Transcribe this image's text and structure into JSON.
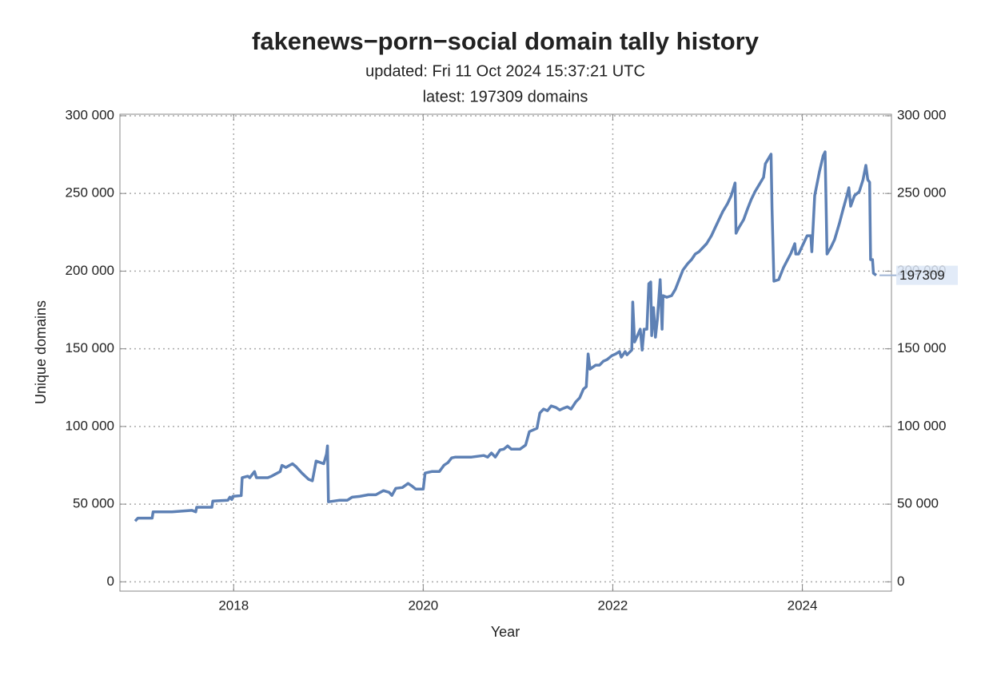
{
  "chart_data": {
    "type": "line",
    "title": "fakenews−porn−social domain tally history",
    "subtitle": [
      "updated: Fri 11 Oct 2024 15:37:21 UTC",
      "latest: 197309 domains"
    ],
    "x_label": "Year",
    "y_label": "Unique domains",
    "xlim": [
      2016.8,
      2024.94
    ],
    "xticks": [
      2018,
      2020,
      2022,
      2024
    ],
    "ylim": [
      -6000,
      301000
    ],
    "yticks": [
      {
        "value": 0,
        "label": "0"
      },
      {
        "value": 50000,
        "label": "50 000"
      },
      {
        "value": 100000,
        "label": "100 000"
      },
      {
        "value": 150000,
        "label": "150 000"
      },
      {
        "value": 200000,
        "label": "200 000"
      },
      {
        "value": 250000,
        "label": "250 000"
      },
      {
        "value": 300000,
        "label": "300 000"
      }
    ],
    "y2lim": [
      -6000,
      301000
    ],
    "y2ticks": [
      {
        "value": 0,
        "label": "0"
      },
      {
        "value": 50000,
        "label": "50 000"
      },
      {
        "value": 100000,
        "label": "100 000"
      },
      {
        "value": 150000,
        "label": "150 000"
      },
      {
        "value": 200000,
        "label": "200 000"
      },
      {
        "value": 250000,
        "label": "250 000"
      },
      {
        "value": 300000,
        "label": "300 000"
      }
    ],
    "grid": true,
    "end_label": 197309,
    "series": [
      {
        "color": "#5e81b5",
        "x": [
          2016.96,
          2016.99,
          2017.14,
          2017.15,
          2017.35,
          2017.56,
          2017.6,
          2017.61,
          2017.77,
          2017.78,
          2017.94,
          2017.96,
          2017.98,
          2017.99,
          2018.08,
          2018.09,
          2018.15,
          2018.17,
          2018.22,
          2018.24,
          2018.36,
          2018.4,
          2018.49,
          2018.51,
          2018.55,
          2018.62,
          2018.66,
          2018.72,
          2018.79,
          2018.83,
          2018.87,
          2018.95,
          2018.98,
          2018.99,
          2019.0,
          2019.12,
          2019.2,
          2019.25,
          2019.33,
          2019.42,
          2019.5,
          2019.58,
          2019.64,
          2019.67,
          2019.71,
          2019.78,
          2019.84,
          2019.88,
          2019.92,
          2020.0,
          2020.02,
          2020.09,
          2020.17,
          2020.22,
          2020.26,
          2020.3,
          2020.34,
          2020.51,
          2020.64,
          2020.68,
          2020.72,
          2020.76,
          2020.81,
          2020.85,
          2020.89,
          2020.93,
          2021.02,
          2021.08,
          2021.12,
          2021.2,
          2021.23,
          2021.27,
          2021.31,
          2021.35,
          2021.4,
          2021.44,
          2021.48,
          2021.52,
          2021.56,
          2021.61,
          2021.65,
          2021.69,
          2021.72,
          2021.74,
          2021.76,
          2021.82,
          2021.86,
          2021.9,
          2021.94,
          2021.99,
          2022.03,
          2022.07,
          2022.09,
          2022.13,
          2022.15,
          2022.2,
          2022.21,
          2022.23,
          2022.26,
          2022.29,
          2022.31,
          2022.33,
          2022.36,
          2022.38,
          2022.4,
          2022.41,
          2022.43,
          2022.45,
          2022.47,
          2022.5,
          2022.52,
          2022.53,
          2022.57,
          2022.62,
          2022.66,
          2022.7,
          2022.74,
          2022.79,
          2022.83,
          2022.87,
          2022.91,
          2022.95,
          2022.99,
          2023.04,
          2023.08,
          2023.12,
          2023.16,
          2023.21,
          2023.25,
          2023.29,
          2023.3,
          2023.33,
          2023.38,
          2023.42,
          2023.46,
          2023.5,
          2023.54,
          2023.59,
          2023.61,
          2023.67,
          2023.68,
          2023.7,
          2023.75,
          2023.8,
          2023.88,
          2023.92,
          2023.93,
          2023.96,
          2024.05,
          2024.09,
          2024.1,
          2024.13,
          2024.18,
          2024.22,
          2024.24,
          2024.26,
          2024.3,
          2024.34,
          2024.39,
          2024.43,
          2024.47,
          2024.49,
          2024.51,
          2024.55,
          2024.6,
          2024.64,
          2024.67,
          2024.69,
          2024.71,
          2024.72,
          2024.74,
          2024.75,
          2024.78
        ],
        "values": [
          39100,
          41000,
          41000,
          45000,
          45000,
          46000,
          45000,
          48000,
          48000,
          52000,
          52500,
          54500,
          53000,
          55000,
          55500,
          67000,
          68000,
          67000,
          71000,
          67000,
          67000,
          68000,
          71000,
          75000,
          73600,
          76000,
          74000,
          70000,
          66000,
          65000,
          77700,
          76000,
          82300,
          87500,
          51500,
          52500,
          52500,
          54500,
          55000,
          56000,
          56000,
          58700,
          57600,
          55600,
          60200,
          60700,
          63300,
          61700,
          59700,
          59700,
          70000,
          71000,
          71000,
          75100,
          76700,
          79800,
          80300,
          80300,
          81300,
          80300,
          82900,
          80300,
          84900,
          85400,
          87500,
          85400,
          85400,
          88000,
          96700,
          98800,
          108600,
          111200,
          110100,
          113200,
          112200,
          110600,
          111700,
          112700,
          111200,
          115800,
          118400,
          124000,
          125600,
          146700,
          136900,
          139500,
          139500,
          142000,
          143100,
          145600,
          146700,
          148200,
          144600,
          148200,
          146100,
          149200,
          180100,
          154400,
          158500,
          162600,
          149200,
          162600,
          162600,
          191900,
          193000,
          158500,
          176500,
          157500,
          168800,
          194500,
          162600,
          184200,
          183200,
          184200,
          188300,
          194500,
          200700,
          204800,
          207400,
          211000,
          212500,
          215100,
          217700,
          222800,
          228000,
          233100,
          238300,
          243400,
          248600,
          256800,
          224400,
          228000,
          233100,
          239800,
          246000,
          251100,
          255200,
          260400,
          269100,
          275300,
          240800,
          193500,
          194500,
          202200,
          211500,
          217700,
          211000,
          211000,
          222800,
          222800,
          212500,
          248600,
          264000,
          274300,
          276800,
          211000,
          215100,
          220300,
          230600,
          239800,
          248600,
          253700,
          241800,
          248600,
          251100,
          258800,
          268100,
          258800,
          257200,
          207400,
          207400,
          198600,
          197309
        ]
      }
    ]
  }
}
